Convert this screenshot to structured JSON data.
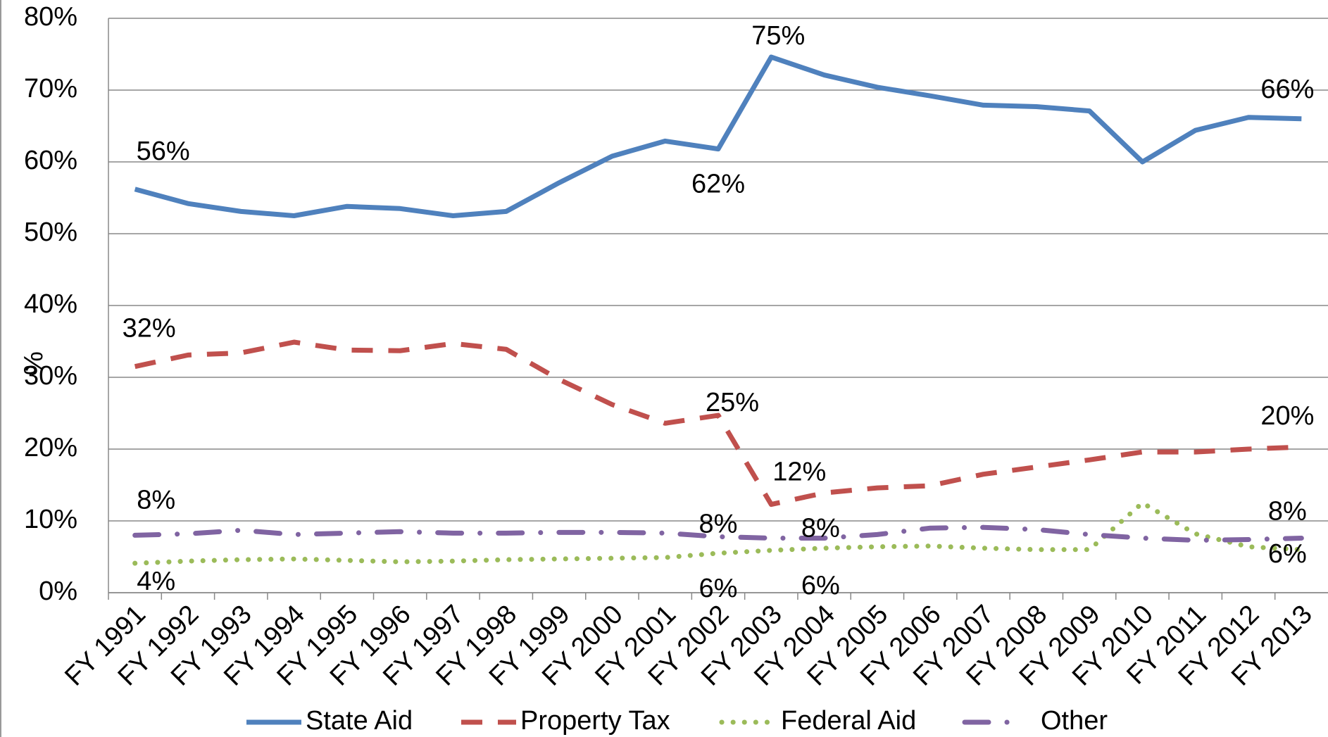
{
  "chart_data": {
    "type": "line",
    "y_label": "%",
    "categories": [
      "FY 1991",
      "FY 1992",
      "FY 1993",
      "FY 1994",
      "FY 1995",
      "FY 1996",
      "FY 1997",
      "FY 1998",
      "FY 1999",
      "FY 2000",
      "FY 2001",
      "FY 2002",
      "FY 2003",
      "FY 2004",
      "FY 2005",
      "FY 2006",
      "FY 2007",
      "FY 2008",
      "FY 2009",
      "FY 2010",
      "FY 2011",
      "FY 2012",
      "FY 2013"
    ],
    "ylim": [
      0,
      80
    ],
    "yticks": [
      {
        "value": 0,
        "label": "0%"
      },
      {
        "value": 10,
        "label": "10%"
      },
      {
        "value": 20,
        "label": "20%"
      },
      {
        "value": 30,
        "label": "30%"
      },
      {
        "value": 40,
        "label": "40%"
      },
      {
        "value": 50,
        "label": "50%"
      },
      {
        "value": 60,
        "label": "60%"
      },
      {
        "value": 70,
        "label": "70%"
      },
      {
        "value": 80,
        "label": "80%"
      }
    ],
    "grid": true,
    "legend": "bottom",
    "series": [
      {
        "name": "State Aid",
        "color": "#4f81bd",
        "style": "solid",
        "values": [
          56.2,
          54.2,
          53.1,
          52.5,
          53.8,
          53.5,
          52.5,
          53.1,
          57.1,
          60.8,
          62.9,
          61.8,
          74.6,
          72.1,
          70.4,
          69.2,
          67.9,
          67.7,
          67.1,
          60.0,
          64.4,
          66.2,
          66.0
        ],
        "value_labels": [
          "56%",
          null,
          null,
          null,
          null,
          null,
          null,
          null,
          null,
          null,
          null,
          "62%",
          "75%",
          null,
          null,
          null,
          null,
          null,
          null,
          null,
          null,
          null,
          "66%"
        ]
      },
      {
        "name": "Property Tax",
        "color": "#c0504d",
        "style": "dashed",
        "values": [
          31.5,
          33.1,
          33.4,
          34.9,
          33.8,
          33.7,
          34.7,
          33.9,
          29.7,
          26.2,
          23.6,
          24.7,
          12.3,
          13.9,
          14.6,
          14.9,
          16.5,
          17.5,
          18.5,
          19.6,
          19.6,
          20.0,
          20.3
        ],
        "value_labels": [
          "32%",
          null,
          null,
          null,
          null,
          null,
          null,
          null,
          null,
          null,
          null,
          "25%",
          "12%",
          null,
          null,
          null,
          null,
          null,
          null,
          null,
          null,
          null,
          "20%"
        ]
      },
      {
        "name": "Federal Aid",
        "color": "#9bbb59",
        "style": "dotted",
        "values": [
          4.1,
          4.4,
          4.6,
          4.7,
          4.5,
          4.3,
          4.4,
          4.6,
          4.7,
          4.8,
          4.9,
          5.5,
          5.9,
          6.2,
          6.4,
          6.5,
          6.2,
          6.0,
          6.0,
          12.5,
          8.2,
          6.4,
          6.0
        ],
        "value_labels": [
          "4%",
          null,
          null,
          null,
          null,
          null,
          null,
          null,
          null,
          null,
          null,
          "6%",
          "6%",
          null,
          null,
          null,
          null,
          null,
          null,
          null,
          null,
          null,
          "6%"
        ]
      },
      {
        "name": "Other",
        "color": "#8064a2",
        "style": "dashdot",
        "values": [
          8.0,
          8.2,
          8.7,
          8.1,
          8.3,
          8.5,
          8.3,
          8.3,
          8.4,
          8.4,
          8.3,
          7.8,
          7.6,
          7.6,
          8.1,
          9.0,
          9.1,
          8.8,
          8.1,
          7.6,
          7.3,
          7.4,
          7.6
        ],
        "value_labels": [
          "8%",
          null,
          null,
          null,
          null,
          null,
          null,
          null,
          null,
          null,
          null,
          "8%",
          "8%",
          null,
          null,
          null,
          null,
          null,
          null,
          null,
          null,
          null,
          "8%"
        ]
      }
    ]
  }
}
